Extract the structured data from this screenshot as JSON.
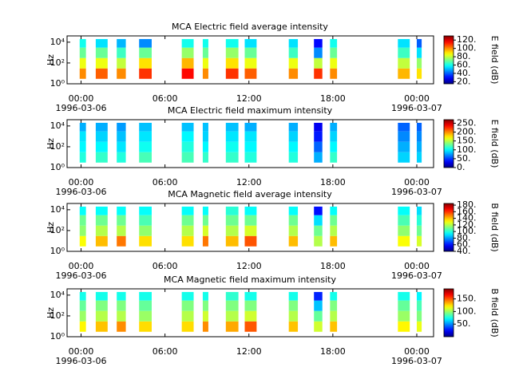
{
  "chart_data": [
    {
      "type": "heatmap",
      "title": "MCA  Electric field average intensity",
      "y_label": "Hz",
      "colorbar_label": "E field (dB)",
      "x_intervals": [
        [
          -0.1,
          0.35
        ],
        [
          1.05,
          1.9
        ],
        [
          2.55,
          3.2
        ],
        [
          4.15,
          5.05
        ],
        [
          7.2,
          8.05
        ],
        [
          8.7,
          9.1
        ],
        [
          10.35,
          11.25
        ],
        [
          11.7,
          12.55
        ],
        [
          14.85,
          15.5
        ],
        [
          16.65,
          17.25
        ],
        [
          17.8,
          18.3
        ],
        [
          22.65,
          23.5
        ],
        [
          24.0,
          24.35
        ]
      ],
      "y_bins": [
        3,
        30,
        300,
        3000,
        20000
      ],
      "z": [
        [
          100,
          85,
          70,
          60
        ],
        [
          105,
          85,
          70,
          55
        ],
        [
          100,
          80,
          65,
          50
        ],
        [
          110,
          90,
          70,
          45
        ],
        [
          115,
          95,
          75,
          60
        ],
        [
          100,
          85,
          70,
          60
        ],
        [
          110,
          90,
          75,
          60
        ],
        [
          105,
          85,
          70,
          55
        ],
        [
          100,
          85,
          65,
          55
        ],
        [
          110,
          80,
          45,
          30
        ],
        [
          100,
          85,
          70,
          60
        ],
        [
          95,
          80,
          65,
          55
        ],
        [
          90,
          75,
          55,
          40
        ]
      ],
      "zlim": [
        15,
        130
      ],
      "zticks": [
        {
          "value": 20,
          "label": "20."
        },
        {
          "value": 40,
          "label": "40."
        },
        {
          "value": 60,
          "label": "60."
        },
        {
          "value": 80,
          "label": "80."
        },
        {
          "value": 100,
          "label": "100."
        },
        {
          "value": 120,
          "label": "120."
        }
      ],
      "xlim": [
        -1,
        25.2
      ],
      "xticks": [
        {
          "value": 0,
          "label": "00:00",
          "sublabel": "1996-03-06"
        },
        {
          "value": 6,
          "label": "06:00"
        },
        {
          "value": 12,
          "label": "12:00"
        },
        {
          "value": 18,
          "label": "18:00"
        },
        {
          "value": 24,
          "label": "00:00",
          "sublabel": "1996-03-07"
        }
      ],
      "ylim": [
        1,
        40000
      ],
      "log_y": true,
      "yticks": [
        {
          "value": 1,
          "label": "10⁰"
        },
        {
          "value": 100,
          "label": "10²"
        },
        {
          "value": 10000,
          "label": "10⁴"
        }
      ]
    },
    {
      "type": "heatmap",
      "title": "MCA  Electric field maximum intensity",
      "y_label": "Hz",
      "colorbar_label": "E field (dB)",
      "x_intervals": [
        [
          -0.1,
          0.35
        ],
        [
          1.05,
          1.9
        ],
        [
          2.55,
          3.2
        ],
        [
          4.15,
          5.05
        ],
        [
          7.2,
          8.05
        ],
        [
          8.7,
          9.1
        ],
        [
          10.35,
          11.25
        ],
        [
          11.7,
          12.55
        ],
        [
          14.85,
          15.5
        ],
        [
          16.65,
          17.25
        ],
        [
          17.8,
          18.3
        ],
        [
          22.65,
          23.5
        ],
        [
          24.0,
          24.35
        ]
      ],
      "y_bins": [
        3,
        30,
        300,
        3000,
        20000
      ],
      "z": [
        [
          110,
          100,
          95,
          80
        ],
        [
          115,
          100,
          90,
          80
        ],
        [
          110,
          95,
          85,
          75
        ],
        [
          120,
          105,
          95,
          85
        ],
        [
          120,
          110,
          100,
          85
        ],
        [
          115,
          100,
          90,
          85
        ],
        [
          115,
          105,
          95,
          85
        ],
        [
          110,
          100,
          95,
          80
        ],
        [
          110,
          100,
          90,
          80
        ],
        [
          80,
          60,
          40,
          30
        ],
        [
          115,
          100,
          90,
          80
        ],
        [
          90,
          80,
          70,
          60
        ],
        [
          90,
          80,
          70,
          60
        ]
      ],
      "zlim": [
        0,
        270
      ],
      "zticks": [
        {
          "value": 0,
          "label": "0."
        },
        {
          "value": 50,
          "label": "50."
        },
        {
          "value": 100,
          "label": "100."
        },
        {
          "value": 150,
          "label": "150."
        },
        {
          "value": 200,
          "label": "200."
        },
        {
          "value": 250,
          "label": "250."
        }
      ],
      "xlim": [
        -1,
        25.2
      ],
      "xticks": [
        {
          "value": 0,
          "label": "00:00",
          "sublabel": "1996-03-06"
        },
        {
          "value": 6,
          "label": "06:00"
        },
        {
          "value": 12,
          "label": "12:00"
        },
        {
          "value": 18,
          "label": "18:00"
        },
        {
          "value": 24,
          "label": "00:00",
          "sublabel": "1996-03-07"
        }
      ],
      "ylim": [
        1,
        40000
      ],
      "log_y": true,
      "yticks": [
        {
          "value": 1,
          "label": "10⁰"
        },
        {
          "value": 100,
          "label": "10²"
        },
        {
          "value": 10000,
          "label": "10⁴"
        }
      ]
    },
    {
      "type": "heatmap",
      "title": "MCA  Magnetic field average intensity",
      "y_label": "Hz",
      "colorbar_label": "B field (dB)",
      "x_intervals": [
        [
          -0.1,
          0.35
        ],
        [
          1.05,
          1.9
        ],
        [
          2.55,
          3.2
        ],
        [
          4.15,
          5.05
        ],
        [
          7.2,
          8.05
        ],
        [
          8.7,
          9.1
        ],
        [
          10.35,
          11.25
        ],
        [
          11.7,
          12.55
        ],
        [
          14.85,
          15.5
        ],
        [
          16.65,
          17.25
        ],
        [
          17.8,
          18.3
        ],
        [
          22.65,
          23.5
        ],
        [
          24.0,
          24.35
        ]
      ],
      "y_bins": [
        3,
        30,
        300,
        3000,
        20000
      ],
      "z": [
        [
          130,
          115,
          110,
          95
        ],
        [
          140,
          120,
          110,
          95
        ],
        [
          150,
          120,
          110,
          95
        ],
        [
          135,
          115,
          105,
          95
        ],
        [
          135,
          120,
          110,
          95
        ],
        [
          150,
          125,
          110,
          95
        ],
        [
          140,
          120,
          110,
          100
        ],
        [
          155,
          125,
          110,
          95
        ],
        [
          140,
          120,
          110,
          95
        ],
        [
          120,
          110,
          90,
          60
        ],
        [
          140,
          120,
          110,
          95
        ],
        [
          130,
          115,
          105,
          95
        ],
        [
          125,
          110,
          100,
          90
        ]
      ],
      "zlim": [
        40,
        185
      ],
      "zticks": [
        {
          "value": 40,
          "label": "40."
        },
        {
          "value": 60,
          "label": "60."
        },
        {
          "value": 80,
          "label": "80."
        },
        {
          "value": 100,
          "label": "100."
        },
        {
          "value": 120,
          "label": "120."
        },
        {
          "value": 140,
          "label": "140."
        },
        {
          "value": 160,
          "label": "160."
        },
        {
          "value": 180,
          "label": "180."
        }
      ],
      "xlim": [
        -1,
        25.2
      ],
      "xticks": [
        {
          "value": 0,
          "label": "00:00",
          "sublabel": "1996-03-06"
        },
        {
          "value": 6,
          "label": "06:00"
        },
        {
          "value": 12,
          "label": "12:00"
        },
        {
          "value": 18,
          "label": "18:00"
        },
        {
          "value": 24,
          "label": "00:00",
          "sublabel": "1996-03-07"
        }
      ],
      "ylim": [
        1,
        40000
      ],
      "log_y": true,
      "yticks": [
        {
          "value": 1,
          "label": "10⁰"
        },
        {
          "value": 100,
          "label": "10²"
        },
        {
          "value": 10000,
          "label": "10⁴"
        }
      ]
    },
    {
      "type": "heatmap",
      "title": "MCA  Magnetic field maximum intensity",
      "y_label": "Hz",
      "colorbar_label": "B field (dB)",
      "x_intervals": [
        [
          -0.1,
          0.35
        ],
        [
          1.05,
          1.9
        ],
        [
          2.55,
          3.2
        ],
        [
          4.15,
          5.05
        ],
        [
          7.2,
          8.05
        ],
        [
          8.7,
          9.1
        ],
        [
          10.35,
          11.25
        ],
        [
          11.7,
          12.55
        ],
        [
          14.85,
          15.5
        ],
        [
          16.65,
          17.25
        ],
        [
          17.8,
          18.3
        ],
        [
          22.65,
          23.5
        ],
        [
          24.0,
          24.35
        ]
      ],
      "y_bins": [
        3,
        30,
        300,
        3000,
        20000
      ],
      "z": [
        [
          120,
          100,
          90,
          75
        ],
        [
          130,
          105,
          95,
          75
        ],
        [
          140,
          105,
          95,
          75
        ],
        [
          125,
          100,
          90,
          75
        ],
        [
          125,
          105,
          95,
          75
        ],
        [
          140,
          110,
          95,
          75
        ],
        [
          135,
          105,
          95,
          80
        ],
        [
          150,
          110,
          95,
          75
        ],
        [
          130,
          105,
          95,
          75
        ],
        [
          110,
          90,
          60,
          30
        ],
        [
          130,
          105,
          95,
          75
        ],
        [
          120,
          100,
          90,
          75
        ],
        [
          115,
          95,
          85,
          70
        ]
      ],
      "zlim": [
        0,
        190
      ],
      "zticks": [
        {
          "value": 50,
          "label": "50."
        },
        {
          "value": 100,
          "label": "100."
        },
        {
          "value": 150,
          "label": "150."
        }
      ],
      "xlim": [
        -1,
        25.2
      ],
      "xticks": [
        {
          "value": 0,
          "label": "00:00",
          "sublabel": "1996-03-06"
        },
        {
          "value": 6,
          "label": "06:00"
        },
        {
          "value": 12,
          "label": "12:00"
        },
        {
          "value": 18,
          "label": "18:00"
        },
        {
          "value": 24,
          "label": "00:00",
          "sublabel": "1996-03-07"
        }
      ],
      "ylim": [
        1,
        40000
      ],
      "log_y": true,
      "yticks": [
        {
          "value": 1,
          "label": "10⁰"
        },
        {
          "value": 100,
          "label": "10²"
        },
        {
          "value": 10000,
          "label": "10⁴"
        }
      ]
    }
  ]
}
